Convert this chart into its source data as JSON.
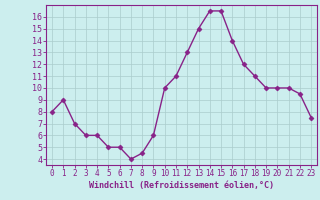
{
  "x": [
    0,
    1,
    2,
    3,
    4,
    5,
    6,
    7,
    8,
    9,
    10,
    11,
    12,
    13,
    14,
    15,
    16,
    17,
    18,
    19,
    20,
    21,
    22,
    23
  ],
  "y": [
    8,
    9,
    7,
    6,
    6,
    5,
    5,
    4,
    4.5,
    6,
    10,
    11,
    13,
    15,
    16.5,
    16.5,
    14,
    12,
    11,
    10,
    10,
    10,
    9.5,
    7.5
  ],
  "line_color": "#882288",
  "marker": "D",
  "marker_size": 2.5,
  "bg_color": "#cceeee",
  "grid_color": "#aacccc",
  "xlabel": "Windchill (Refroidissement éolien,°C)",
  "xlabel_color": "#882288",
  "tick_color": "#882288",
  "ylim": [
    3.5,
    17.0
  ],
  "xlim": [
    -0.5,
    23.5
  ],
  "yticks": [
    4,
    5,
    6,
    7,
    8,
    9,
    10,
    11,
    12,
    13,
    14,
    15,
    16
  ],
  "xticks": [
    0,
    1,
    2,
    3,
    4,
    5,
    6,
    7,
    8,
    9,
    10,
    11,
    12,
    13,
    14,
    15,
    16,
    17,
    18,
    19,
    20,
    21,
    22,
    23
  ],
  "spine_color": "#882288",
  "linewidth": 1.0
}
